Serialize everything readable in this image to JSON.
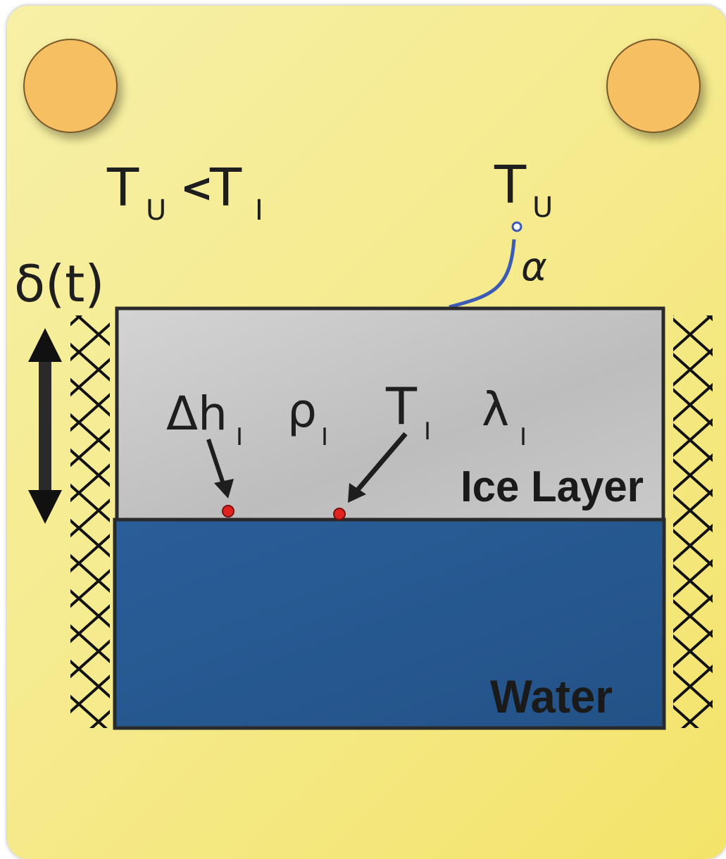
{
  "labels": {
    "temp_relation": {
      "main1": "T",
      "sub1": "U",
      "op": "<",
      "main2": "T",
      "sub2": "I"
    },
    "temp_surface": {
      "main": "T",
      "sub": "U"
    },
    "heat_coeff": "α",
    "thickness": "δ(t)",
    "latent_heat": {
      "main": "Δh",
      "sub": "I"
    },
    "density": {
      "main": "ρ",
      "sub": "I"
    },
    "ice_temp": {
      "main": "T",
      "sub": "I"
    },
    "conductivity": {
      "main": "λ",
      "sub": "I"
    },
    "ice_layer": "Ice Layer",
    "water": "Water"
  },
  "colors": {
    "background": "#f5ea8c",
    "sun": "#f6bf62",
    "ice": "#c2c2c2",
    "water": "#275a95",
    "outline": "#2a2a2a",
    "probe_line": "#3b5bb5",
    "probe_dot": "#e0231f"
  }
}
